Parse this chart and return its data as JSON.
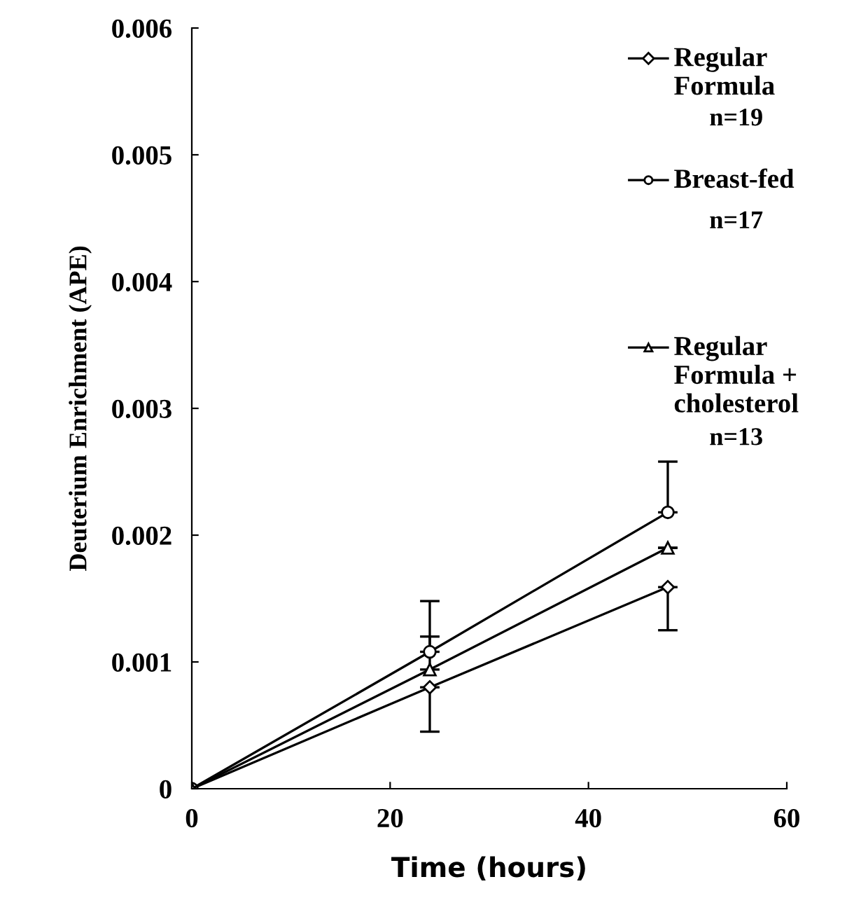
{
  "chart_data": {
    "type": "line",
    "xlabel": "Time (hours)",
    "ylabel": "Deuterium Enrichment (APE)",
    "x": [
      0,
      24,
      48
    ],
    "series": [
      {
        "name": "Regular Formula",
        "color": "#000000",
        "marker": "diamond",
        "values": [
          0,
          0.0008,
          0.00159
        ],
        "errors": [
          null,
          [
            0.00045,
            0.0008
          ],
          [
            0.00125,
            0.00159
          ]
        ]
      },
      {
        "name": "Breast-fed",
        "color": "#000000",
        "marker": "circle",
        "values": [
          0,
          0.00108,
          0.00218
        ],
        "errors": [
          null,
          [
            0.00108,
            0.00148
          ],
          [
            0.00218,
            0.00258
          ]
        ]
      },
      {
        "name": "Regular Formula + cholesterol",
        "color": "#000000",
        "marker": "triangle",
        "values": [
          0,
          0.00094,
          0.0019
        ],
        "errors": [
          null,
          [
            0.00094,
            0.0012
          ],
          [
            0.0019,
            0.0019
          ]
        ]
      }
    ],
    "annotations": [
      "n=19",
      "n=17",
      "n=13"
    ],
    "xlim": [
      0,
      60
    ],
    "xticks": [
      0,
      20,
      40,
      60
    ],
    "ylim": [
      0,
      0.006
    ],
    "yticks": [
      0,
      0.001,
      0.002,
      0.003,
      0.004,
      0.005,
      0.006
    ],
    "legend": "top right",
    "grid": false,
    "line_style": "solid"
  }
}
